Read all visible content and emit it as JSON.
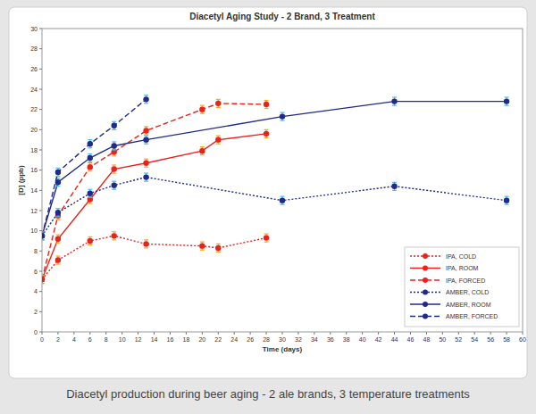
{
  "chart_data": {
    "type": "line",
    "title": "Diacetyl Aging Study - 2 Brand, 3 Treatment",
    "caption": "Diacetyl production during beer aging - 2 ale brands, 3 temperature treatments",
    "x_label": "Time (days)",
    "y_label": "[D] (ppb)",
    "xlim": [
      0,
      60
    ],
    "ylim": [
      0,
      30
    ],
    "xticks": [
      0,
      2,
      4,
      6,
      8,
      10,
      12,
      14,
      16,
      18,
      20,
      22,
      24,
      26,
      28,
      30,
      32,
      34,
      36,
      38,
      40,
      42,
      44,
      46,
      48,
      50,
      52,
      54,
      56,
      58,
      60
    ],
    "yticks": [
      0,
      2,
      4,
      6,
      8,
      10,
      12,
      14,
      16,
      18,
      20,
      22,
      24,
      26,
      28,
      30
    ],
    "grid": false,
    "legend": "bottom-right",
    "marker": "circle",
    "series": [
      {
        "name": "IPA, COLD",
        "color": "#e8231c",
        "line_style": "dotted",
        "x": [
          0,
          2,
          6,
          9,
          13,
          20,
          22,
          28
        ],
        "values": [
          5.2,
          7.1,
          9.0,
          9.5,
          8.7,
          8.5,
          8.3,
          9.3
        ],
        "errors": [
          0.4,
          0.4,
          0.4,
          0.4,
          0.4,
          0.4,
          0.4,
          0.4
        ]
      },
      {
        "name": "IPA, ROOM",
        "color": "#e8231c",
        "line_style": "solid",
        "x": [
          0,
          2,
          6,
          9,
          13,
          20,
          22,
          28
        ],
        "values": [
          5.2,
          9.2,
          13.1,
          16.1,
          16.7,
          17.9,
          19.0,
          19.6
        ],
        "errors": [
          0.4,
          0.4,
          0.4,
          0.4,
          0.4,
          0.4,
          0.4,
          0.4
        ]
      },
      {
        "name": "IPA, FORCED",
        "color": "#e8231c",
        "line_style": "dashed",
        "x": [
          0,
          2,
          6,
          9,
          13,
          20,
          22,
          28
        ],
        "values": [
          5.2,
          11.5,
          16.3,
          17.8,
          19.9,
          22.0,
          22.6,
          22.5
        ],
        "errors": [
          0.4,
          0.4,
          0.4,
          0.4,
          0.4,
          0.4,
          0.4,
          0.4
        ]
      },
      {
        "name": "AMBER, COLD",
        "color": "#1f2a8a",
        "line_style": "dotted",
        "x": [
          0,
          2,
          6,
          9,
          13,
          30,
          44,
          58
        ],
        "values": [
          9.5,
          11.8,
          13.7,
          14.5,
          15.3,
          13.0,
          14.4,
          13.0
        ],
        "errors": [
          0.4,
          0.4,
          0.4,
          0.4,
          0.4,
          0.4,
          0.4,
          0.4
        ]
      },
      {
        "name": "AMBER, ROOM",
        "color": "#1f2a8a",
        "line_style": "solid",
        "x": [
          0,
          2,
          6,
          9,
          13,
          30,
          44,
          58
        ],
        "values": [
          9.5,
          14.8,
          17.2,
          18.4,
          19.0,
          21.3,
          22.8,
          22.8
        ],
        "errors": [
          0.4,
          0.4,
          0.4,
          0.4,
          0.4,
          0.4,
          0.4,
          0.4
        ]
      },
      {
        "name": "AMBER, FORCED",
        "color": "#1f2a8a",
        "line_style": "dashed",
        "x": [
          0,
          2,
          6,
          9,
          13
        ],
        "values": [
          9.5,
          15.8,
          18.6,
          20.4,
          23.0
        ],
        "errors": [
          0.4,
          0.4,
          0.4,
          0.4,
          0.4
        ]
      }
    ]
  }
}
